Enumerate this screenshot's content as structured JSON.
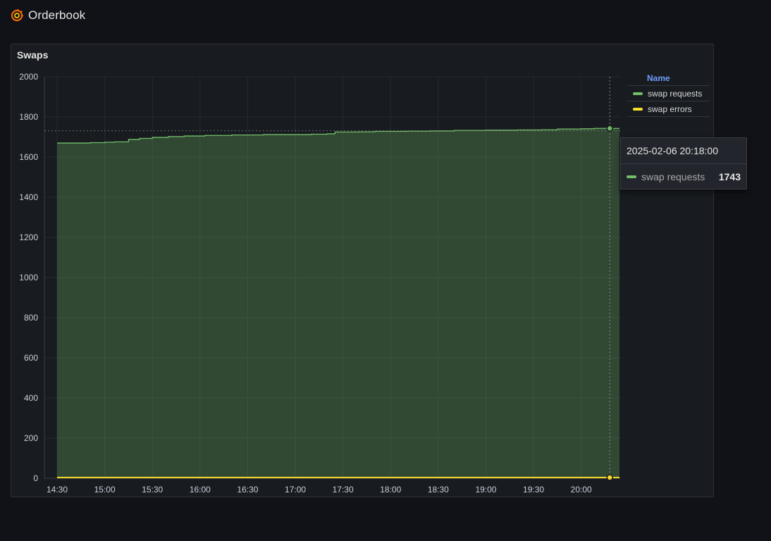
{
  "header": {
    "title": "Orderbook",
    "logo_icon": "grafana-logo-icon"
  },
  "panel": {
    "title": "Swaps"
  },
  "legend": {
    "header": "Name",
    "items": [
      {
        "label": "swap requests",
        "color": "#73bf69"
      },
      {
        "label": "swap errors",
        "color": "#fade2a"
      }
    ]
  },
  "tooltip": {
    "time": "2025-02-06 20:18:00",
    "series_name": "swap requests",
    "value": "1743",
    "color": "#73bf69"
  },
  "chart_data": {
    "type": "area",
    "title": "Swaps",
    "xlabel": "",
    "ylabel": "",
    "x_ticks": [
      "14:30",
      "15:00",
      "15:30",
      "16:00",
      "16:30",
      "17:00",
      "17:30",
      "18:00",
      "18:30",
      "19:00",
      "19:30",
      "20:00"
    ],
    "y_ticks": [
      0,
      200,
      400,
      600,
      800,
      1000,
      1200,
      1400,
      1600,
      1800,
      2000
    ],
    "ylim": [
      0,
      2000
    ],
    "xlim": [
      "14:30",
      "20:25"
    ],
    "grid": true,
    "legend_position": "right",
    "hover_time": "20:18",
    "hover_reference_value": 1731,
    "series": [
      {
        "name": "swap requests",
        "color": "#73bf69",
        "fill": true,
        "step": true,
        "x": [
          "14:30",
          "14:51",
          "15:00",
          "15:06",
          "15:15",
          "15:22",
          "15:30",
          "15:40",
          "15:50",
          "16:03",
          "16:20",
          "16:40",
          "17:00",
          "17:10",
          "17:20",
          "17:25",
          "17:40",
          "17:50",
          "18:10",
          "18:25",
          "18:40",
          "19:00",
          "19:20",
          "19:35",
          "19:45",
          "20:00",
          "20:08",
          "20:18"
        ],
        "y": [
          1670,
          1672,
          1674,
          1676,
          1688,
          1693,
          1698,
          1702,
          1705,
          1708,
          1710,
          1712,
          1712,
          1714,
          1716,
          1725,
          1726,
          1728,
          1729,
          1730,
          1733,
          1734,
          1735,
          1736,
          1740,
          1741,
          1743,
          1743
        ]
      },
      {
        "name": "swap errors",
        "color": "#fade2a",
        "fill": false,
        "step": true,
        "x": [
          "14:30",
          "20:18"
        ],
        "y": [
          4,
          4
        ]
      }
    ]
  }
}
